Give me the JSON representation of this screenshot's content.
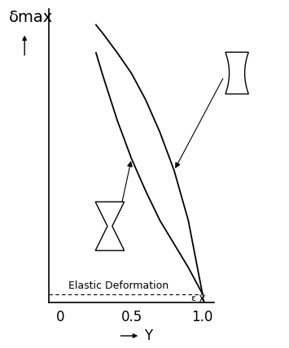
{
  "chart_data": {
    "type": "line",
    "y_label": "δmax",
    "x_label": "Y",
    "x": [
      0.25,
      0.3,
      0.4,
      0.5,
      0.6,
      0.7,
      0.8,
      0.9,
      1.0
    ],
    "series": [
      {
        "color": "#000000",
        "values": [
          94.5,
          91.5,
          85,
          78,
          69,
          58,
          45,
          28,
          3
        ]
      },
      {
        "color": "#000000",
        "values": [
          85,
          77,
          62,
          49,
          38,
          28,
          20,
          12,
          3
        ]
      }
    ],
    "reference_line": {
      "label": "Elastic Deformation",
      "y": 3,
      "x": 1.0,
      "gap_label": "ε"
    },
    "xlim": [
      -0.08,
      1.08
    ],
    "ylim": [
      0,
      100
    ],
    "xticks": [
      0,
      0.5,
      1.0
    ],
    "tick_labels": "x",
    "grid": false
  }
}
